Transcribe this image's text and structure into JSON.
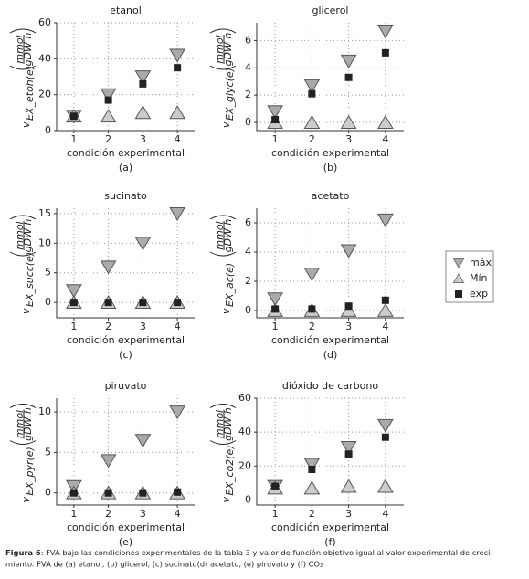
{
  "chart_data": [
    {
      "type": "scatter",
      "title": "etanol",
      "ylabel": "v",
      "ylabel_sub": "EX_etoh(e)",
      "unit_num": "mmol",
      "unit_den": "gDW h",
      "xlabel": "condición experimental",
      "panel": "(a)",
      "x": [
        1,
        2,
        3,
        4
      ],
      "xlim": [
        0.5,
        4.5
      ],
      "xticks": [
        1,
        2,
        3,
        4
      ],
      "ylim": [
        0,
        60
      ],
      "yticks": [
        0,
        20,
        40,
        60
      ],
      "grid": true,
      "series": [
        {
          "name": "máx",
          "color": "#aaaaaa",
          "values": [
            8,
            20,
            30,
            42
          ]
        },
        {
          "name": "Mín",
          "color": "#cccccc",
          "values": [
            8,
            8,
            10,
            10
          ]
        },
        {
          "name": "exp",
          "color": "#222222",
          "values": [
            8,
            17,
            26,
            35
          ]
        }
      ]
    },
    {
      "type": "scatter",
      "title": "glicerol",
      "ylabel": "v",
      "ylabel_sub": "EX_glyc(e)",
      "unit_num": "mmol",
      "unit_den": "gDW h",
      "xlabel": "condición experimental",
      "panel": "(b)",
      "x": [
        1,
        2,
        3,
        4
      ],
      "xlim": [
        0.5,
        4.5
      ],
      "xticks": [
        1,
        2,
        3,
        4
      ],
      "ylim": [
        -0.6,
        7.3
      ],
      "yticks": [
        0,
        2,
        4,
        6
      ],
      "grid": true,
      "series": [
        {
          "name": "máx",
          "color": "#aaaaaa",
          "values": [
            0.8,
            2.7,
            4.5,
            6.7
          ]
        },
        {
          "name": "Mín",
          "color": "#cccccc",
          "values": [
            0,
            0,
            0,
            0
          ]
        },
        {
          "name": "exp",
          "color": "#222222",
          "values": [
            0.2,
            2.1,
            3.3,
            5.1
          ]
        }
      ]
    },
    {
      "type": "scatter",
      "title": "sucinato",
      "ylabel": "v",
      "ylabel_sub": "EX_succ(e)",
      "unit_num": "mmol",
      "unit_den": "gDW h",
      "xlabel": "condición experimental",
      "panel": "(c)",
      "x": [
        1,
        2,
        3,
        4
      ],
      "xlim": [
        0.5,
        4.5
      ],
      "xticks": [
        1,
        2,
        3,
        4
      ],
      "ylim": [
        -2.6,
        15.9
      ],
      "yticks": [
        0,
        5,
        10,
        15
      ],
      "grid": true,
      "series": [
        {
          "name": "máx",
          "color": "#aaaaaa",
          "values": [
            2,
            6,
            10,
            15
          ]
        },
        {
          "name": "Mín",
          "color": "#cccccc",
          "values": [
            0,
            0,
            0,
            0
          ]
        },
        {
          "name": "exp",
          "color": "#222222",
          "values": [
            0,
            0,
            0,
            0
          ]
        }
      ]
    },
    {
      "type": "scatter",
      "title": "acetato",
      "ylabel": "v",
      "ylabel_sub": "EX_ac(e)",
      "unit_num": "mmol",
      "unit_den": "gDW h",
      "xlabel": "condición experimental",
      "panel": "(d)",
      "x": [
        1,
        2,
        3,
        4
      ],
      "xlim": [
        0.5,
        4.5
      ],
      "xticks": [
        1,
        2,
        3,
        4
      ],
      "ylim": [
        -0.5,
        7
      ],
      "yticks": [
        0,
        2,
        4,
        6
      ],
      "grid": true,
      "series": [
        {
          "name": "máx",
          "color": "#aaaaaa",
          "values": [
            0.8,
            2.5,
            4.1,
            6.2
          ]
        },
        {
          "name": "Mín",
          "color": "#cccccc",
          "values": [
            0,
            0,
            0,
            0
          ]
        },
        {
          "name": "exp",
          "color": "#222222",
          "values": [
            0.1,
            0.1,
            0.3,
            0.7
          ]
        }
      ]
    },
    {
      "type": "scatter",
      "title": "piruvato",
      "ylabel": "v",
      "ylabel_sub": "EX_pyr(e)",
      "unit_num": "mmol",
      "unit_den": "gDW h",
      "xlabel": "condición experimental",
      "panel": "(e)",
      "x": [
        1,
        2,
        3,
        4
      ],
      "xlim": [
        0.5,
        4.5
      ],
      "xticks": [
        1,
        2,
        3,
        4
      ],
      "ylim": [
        -1.5,
        11.7
      ],
      "yticks": [
        0,
        5,
        10
      ],
      "grid": true,
      "series": [
        {
          "name": "máx",
          "color": "#aaaaaa",
          "values": [
            0.8,
            4,
            6.5,
            10
          ]
        },
        {
          "name": "Mín",
          "color": "#cccccc",
          "values": [
            0,
            0,
            0,
            0
          ]
        },
        {
          "name": "exp",
          "color": "#222222",
          "values": [
            0,
            0,
            0,
            0.1
          ]
        }
      ]
    },
    {
      "type": "scatter",
      "title": "dióxido de carbono",
      "ylabel": "v",
      "ylabel_sub": "EX_co2(e)",
      "unit_num": "mmol",
      "unit_den": "gDW h",
      "xlabel": "condición experimental",
      "panel": "(f)",
      "x": [
        1,
        2,
        3,
        4
      ],
      "xlim": [
        0.5,
        4.5
      ],
      "xticks": [
        1,
        2,
        3,
        4
      ],
      "ylim": [
        -3,
        60
      ],
      "yticks": [
        0,
        20,
        40,
        60
      ],
      "grid": true,
      "series": [
        {
          "name": "máx",
          "color": "#aaaaaa",
          "values": [
            8,
            21,
            31,
            44
          ]
        },
        {
          "name": "Mín",
          "color": "#cccccc",
          "values": [
            7,
            7,
            8,
            8
          ]
        },
        {
          "name": "exp",
          "color": "#222222",
          "values": [
            8,
            18,
            27,
            37
          ]
        }
      ]
    }
  ],
  "caption": {
    "label": "Figura 6",
    "lines": [
      ": FVA bajo las condiciones experimentales de la tabla 3 y valor de función objetivo igual al valor experimental de creci-",
      "miento. FVA de (a) etanol, (b) glicerol, (c)  sucinato(d)  acetato, (e) piruvato y (f) CO₂"
    ]
  }
}
